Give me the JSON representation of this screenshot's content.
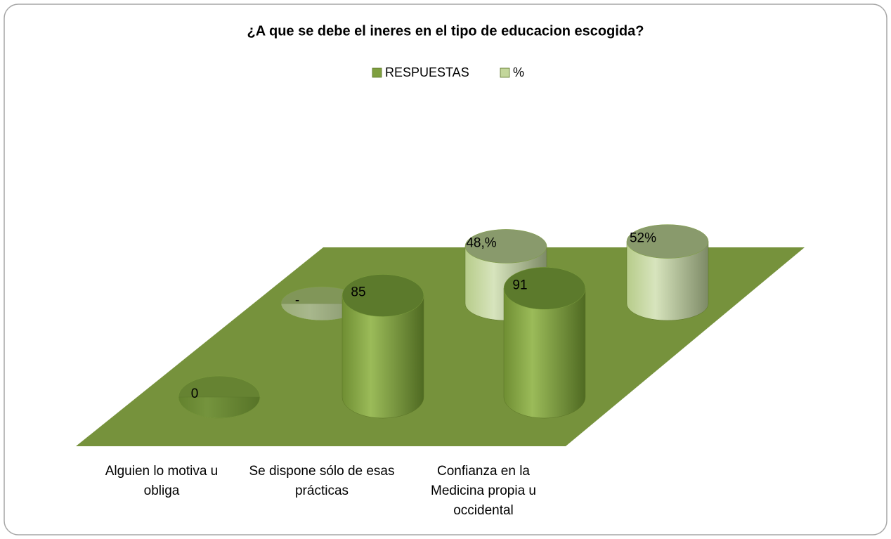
{
  "chart_data": {
    "type": "cylinder3d",
    "title": "¿A que se debe el ineres en el tipo de educacion escogida?",
    "categories": [
      "Alguien lo motiva u obliga",
      "Se dispone sólo de esas prácticas",
      "Confianza en la Medicina propia u occidental"
    ],
    "series": [
      {
        "name": "RESPUESTAS",
        "color": "#7e9f3f",
        "values": [
          0,
          85,
          91
        ],
        "value_labels": [
          "0",
          "85",
          "91"
        ]
      },
      {
        "name": "%",
        "color": "#c3d69b",
        "values": [
          0,
          48,
          52
        ],
        "value_labels": [
          "-",
          "48,%",
          "52%"
        ]
      }
    ],
    "legend": "top"
  }
}
